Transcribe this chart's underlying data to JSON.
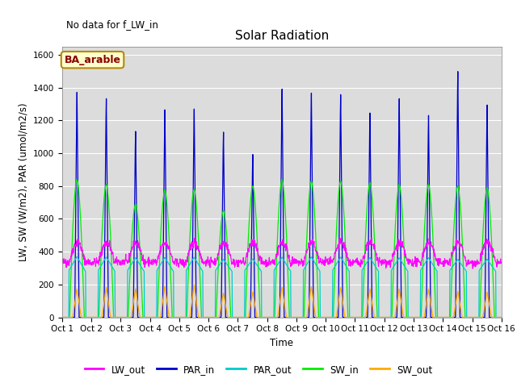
{
  "title": "Solar Radiation",
  "note": "No data for f_LW_in",
  "legend_label": "BA_arable",
  "ylabel": "LW, SW (W/m2), PAR (umol/m2/s)",
  "xlabel": "Time",
  "ylim": [
    0,
    1650
  ],
  "xlim_days": 15,
  "n_days": 15,
  "dt": 0.25,
  "background_color": "#dcdcdc",
  "series": {
    "LW_out": {
      "color": "#ff00ff",
      "lw": 0.8
    },
    "PAR_in": {
      "color": "#0000cc",
      "lw": 0.9
    },
    "PAR_out": {
      "color": "#00cccc",
      "lw": 0.9
    },
    "SW_in": {
      "color": "#00ee00",
      "lw": 0.9
    },
    "SW_out": {
      "color": "#ffaa00",
      "lw": 0.9
    }
  },
  "PAR_in_peaks": [
    1410,
    1370,
    1165,
    1300,
    1305,
    1160,
    1020,
    1430,
    1405,
    1395,
    1280,
    1370,
    1265,
    1540,
    1330
  ],
  "SW_in_peaks": [
    840,
    810,
    690,
    775,
    780,
    650,
    800,
    840,
    830,
    830,
    820,
    810,
    810,
    800,
    790
  ],
  "SW_out_peaks": [
    175,
    185,
    175,
    190,
    200,
    150,
    155,
    185,
    190,
    185,
    175,
    175,
    175,
    160,
    155
  ],
  "PAR_out_peaks": [
    360,
    350,
    335,
    340,
    345,
    295,
    305,
    345,
    355,
    350,
    335,
    330,
    335,
    295,
    300
  ],
  "LW_out_base": 335,
  "LW_out_day_peak": 470,
  "title_fontsize": 11,
  "tick_fontsize": 7.5,
  "label_fontsize": 8.5,
  "note_fontsize": 8.5,
  "ba_fontsize": 9
}
